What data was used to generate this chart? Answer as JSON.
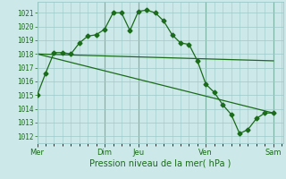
{
  "bg_color": "#cce8e8",
  "grid_color": "#9dc8c8",
  "line_color": "#1a6b1a",
  "xlabel": "Pression niveau de la mer( hPa )",
  "ylim": [
    1011.5,
    1021.8
  ],
  "yticks": [
    1012,
    1013,
    1014,
    1015,
    1016,
    1017,
    1018,
    1019,
    1020,
    1021
  ],
  "x_day_labels": [
    "Mer",
    "Dim",
    "Jeu",
    "Ven",
    "Sam"
  ],
  "x_day_positions": [
    0,
    48,
    72,
    120,
    168
  ],
  "xlim": [
    0,
    175
  ],
  "series1_x": [
    0,
    6,
    12,
    18,
    24,
    30,
    36,
    42,
    48,
    54,
    60,
    66,
    72,
    78,
    84,
    90,
    96,
    102,
    108,
    114,
    120,
    126,
    132,
    138,
    144,
    150,
    156,
    162,
    168
  ],
  "series1_y": [
    1015.0,
    1016.6,
    1018.1,
    1018.1,
    1018.0,
    1018.8,
    1019.3,
    1019.4,
    1019.8,
    1021.0,
    1021.0,
    1019.7,
    1021.1,
    1021.2,
    1021.0,
    1020.4,
    1019.4,
    1018.8,
    1018.7,
    1017.5,
    1015.8,
    1015.2,
    1014.3,
    1013.6,
    1012.2,
    1012.5,
    1013.3,
    1013.7,
    1013.7
  ],
  "series2_x": [
    0,
    168
  ],
  "series2_y": [
    1018.0,
    1017.5
  ],
  "series3_x": [
    0,
    168
  ],
  "series3_y": [
    1018.0,
    1013.7
  ]
}
